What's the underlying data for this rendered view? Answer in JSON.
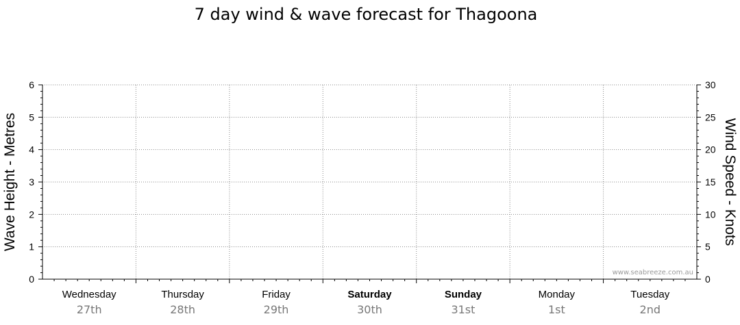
{
  "chart_data": {
    "type": "line",
    "title": "7 day wind & wave forecast for Thagoona",
    "ylabel_left": "Wave Height - Metres",
    "ylabel_right": "Wind Speed - Knots",
    "y_left_range": [
      0,
      6
    ],
    "y_left_ticks": [
      "0",
      "1",
      "2",
      "3",
      "4",
      "5",
      "6"
    ],
    "y_right_range": [
      0,
      30
    ],
    "y_right_ticks": [
      "0",
      "5",
      "10",
      "15",
      "20",
      "25",
      "30"
    ],
    "grid": true,
    "days": [
      {
        "name": "Wednesday",
        "date": "27th",
        "bold": false
      },
      {
        "name": "Thursday",
        "date": "28th",
        "bold": false
      },
      {
        "name": "Friday",
        "date": "29th",
        "bold": false
      },
      {
        "name": "Saturday",
        "date": "30th",
        "bold": true
      },
      {
        "name": "Sunday",
        "date": "31st",
        "bold": true
      },
      {
        "name": "Monday",
        "date": "1st",
        "bold": false
      },
      {
        "name": "Tuesday",
        "date": "2nd",
        "bold": false
      }
    ],
    "series": []
  },
  "watermark": "www.seabreeze.com.au",
  "colors": {
    "grid": "#888888",
    "axis": "#000000",
    "date_text": "#777777",
    "watermark": "#999999"
  }
}
